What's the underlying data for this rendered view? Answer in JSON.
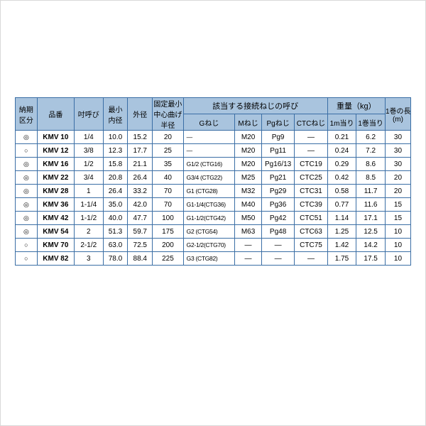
{
  "table": {
    "header_bg": "#a9c4de",
    "border_color": "#3a6ea5",
    "headers": {
      "col1": "納期\n区分",
      "col2": "品番",
      "col3": "吋呼び",
      "col4": "最小\n内径",
      "col5": "外径",
      "col6": "固定最小\n中心曲げ\n半径",
      "grp_thread": "該当する接続ねじの呼び",
      "g": "Gねじ",
      "m": "Mねじ",
      "pg": "Pgねじ",
      "ctc": "CTCねじ",
      "grp_weight": "重量（kg）",
      "per_m": "1m当り",
      "per_roll": "1巻当り",
      "len": "1巻の長さ\n(m)"
    },
    "rows": [
      {
        "nk": "◎",
        "pn": "KMV 10",
        "inch": "1/4",
        "id": "10.0",
        "od": "15.2",
        "bend": "20",
        "g": "—",
        "m": "M20",
        "pg": "Pg9",
        "ctc": "—",
        "wm": "0.21",
        "wr": "6.2",
        "len": "30"
      },
      {
        "nk": "○",
        "pn": "KMV 12",
        "inch": "3/8",
        "id": "12.3",
        "od": "17.7",
        "bend": "25",
        "g": "—",
        "m": "M20",
        "pg": "Pg11",
        "ctc": "—",
        "wm": "0.24",
        "wr": "7.2",
        "len": "30"
      },
      {
        "nk": "◎",
        "pn": "KMV 16",
        "inch": "1/2",
        "id": "15.8",
        "od": "21.1",
        "bend": "35",
        "g": "G1/2  (CTG16)",
        "m": "M20",
        "pg": "Pg16/13",
        "ctc": "CTC19",
        "wm": "0.29",
        "wr": "8.6",
        "len": "30"
      },
      {
        "nk": "◎",
        "pn": "KMV 22",
        "inch": "3/4",
        "id": "20.8",
        "od": "26.4",
        "bend": "40",
        "g": "G3/4  (CTG22)",
        "m": "M25",
        "pg": "Pg21",
        "ctc": "CTC25",
        "wm": "0.42",
        "wr": "8.5",
        "len": "20"
      },
      {
        "nk": "◎",
        "pn": "KMV 28",
        "inch": "1",
        "id": "26.4",
        "od": "33.2",
        "bend": "70",
        "g": "G1    (CTG28)",
        "m": "M32",
        "pg": "Pg29",
        "ctc": "CTC31",
        "wm": "0.58",
        "wr": "11.7",
        "len": "20"
      },
      {
        "nk": "◎",
        "pn": "KMV 36",
        "inch": "1-1/4",
        "id": "35.0",
        "od": "42.0",
        "bend": "70",
        "g": "G1-1/4(CTG36)",
        "m": "M40",
        "pg": "Pg36",
        "ctc": "CTC39",
        "wm": "0.77",
        "wr": "11.6",
        "len": "15"
      },
      {
        "nk": "◎",
        "pn": "KMV 42",
        "inch": "1-1/2",
        "id": "40.0",
        "od": "47.7",
        "bend": "100",
        "g": "G1-1/2(CTG42)",
        "m": "M50",
        "pg": "Pg42",
        "ctc": "CTC51",
        "wm": "1.14",
        "wr": "17.1",
        "len": "15"
      },
      {
        "nk": "◎",
        "pn": "KMV 54",
        "inch": "2",
        "id": "51.3",
        "od": "59.7",
        "bend": "175",
        "g": "G2    (CTG54)",
        "m": "M63",
        "pg": "Pg48",
        "ctc": "CTC63",
        "wm": "1.25",
        "wr": "12.5",
        "len": "10"
      },
      {
        "nk": "○",
        "pn": "KMV 70",
        "inch": "2-1/2",
        "id": "63.0",
        "od": "72.5",
        "bend": "200",
        "g": "G2-1/2(CTG70)",
        "m": "—",
        "pg": "—",
        "ctc": "CTC75",
        "wm": "1.42",
        "wr": "14.2",
        "len": "10"
      },
      {
        "nk": "○",
        "pn": "KMV 82",
        "inch": "3",
        "id": "78.0",
        "od": "88.4",
        "bend": "225",
        "g": "G3    (CTG82)",
        "m": "—",
        "pg": "—",
        "ctc": "—",
        "wm": "1.75",
        "wr": "17.5",
        "len": "10"
      }
    ],
    "col_widths_pct": [
      5.3,
      9.0,
      7.0,
      6.0,
      6.0,
      7.5,
      12.5,
      6.5,
      8.0,
      8.0,
      7.0,
      7.0,
      6.2
    ]
  }
}
